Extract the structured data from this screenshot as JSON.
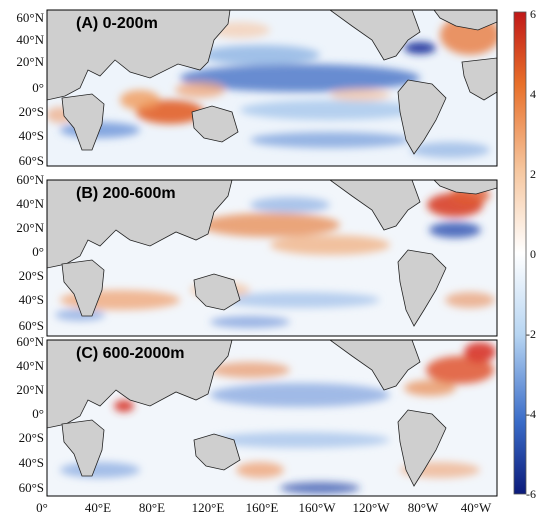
{
  "panels": [
    {
      "title": "(A) 0-200m"
    },
    {
      "title": "(B) 200-600m"
    },
    {
      "title": "(C) 600-2000m"
    }
  ],
  "lat_ticks": [
    "60°N",
    "40°N",
    "20°N",
    "0°",
    "20°S",
    "40°S",
    "60°S"
  ],
  "lon_ticks": [
    "0°",
    "40°E",
    "80°E",
    "120°E",
    "160°E",
    "160°W",
    "120°W",
    "80°W",
    "40°W"
  ],
  "colorbar": {
    "ticks": [
      "6",
      "4",
      "2",
      "0",
      "-2",
      "-4",
      "-6"
    ],
    "min": -6,
    "max": 6,
    "colors": {
      "high": "#c81e1e",
      "mid": "#ffffff",
      "low": "#0b1f8c"
    }
  },
  "colors": {
    "land": "#cfcfcf",
    "coast": "#222222",
    "warm": "#e0602a",
    "cool": "#2a62c4"
  }
}
